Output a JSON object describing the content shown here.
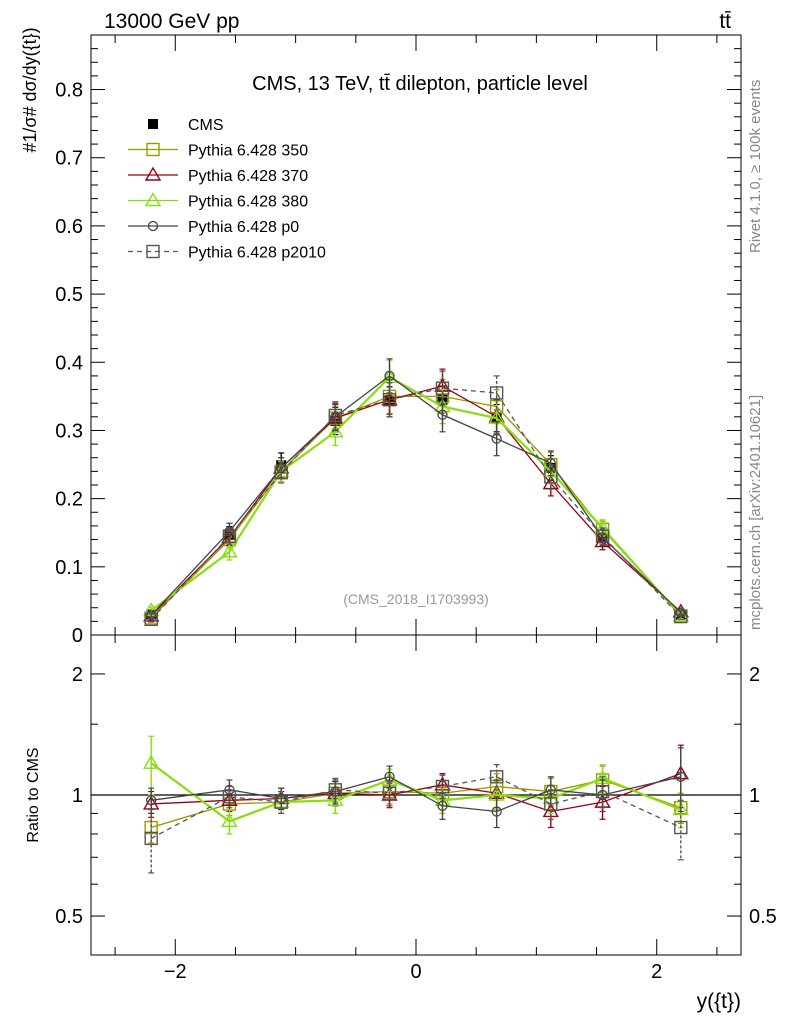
{
  "header": {
    "left_label": "13000 GeV pp",
    "right_label": "tt̄"
  },
  "side_labels": {
    "rivet": "Rivet 4.1.0, ≥ 100k events",
    "source": "mcplots.cern.ch [arXiv:2401.10621]"
  },
  "chart_data": [
    {
      "type": "line",
      "panel": "main",
      "title": "CMS, 13 TeV, tt̄ dilepton, particle level",
      "watermark": "(CMS_2018_I1703993)",
      "ylabel": "#1/σ# dσ/dy({t})",
      "xlabel": "y({t})",
      "xlim": [
        -2.7,
        2.7
      ],
      "ylim": [
        0,
        0.88
      ],
      "x_ticks": [
        -2,
        0,
        2
      ],
      "y_ticks": [
        0,
        0.1,
        0.2,
        0.3,
        0.4,
        0.5,
        0.6,
        0.7,
        0.8
      ],
      "y_tick_labels": [
        "0",
        "0.1",
        "0.2",
        "0.3",
        "0.4",
        "0.5",
        "0.6",
        "0.7",
        "0.8"
      ],
      "x": [
        -2.2,
        -1.55,
        -1.12,
        -0.67,
        -0.22,
        0.22,
        0.67,
        1.12,
        1.55,
        2.2
      ],
      "legend_position": "top-left",
      "series": [
        {
          "name": "CMS",
          "color": "#000000",
          "marker": "filled-square",
          "line": "none",
          "values": [
            0.03,
            0.147,
            0.249,
            0.314,
            0.344,
            0.345,
            0.318,
            0.245,
            0.142,
            0.03
          ],
          "errors": [
            0.004,
            0.012,
            0.018,
            0.02,
            0.02,
            0.02,
            0.02,
            0.018,
            0.012,
            0.004
          ]
        },
        {
          "name": "Pythia 6.428 350",
          "color": "#999900",
          "marker": "open-square",
          "line": "solid",
          "values": [
            0.025,
            0.14,
            0.24,
            0.318,
            0.35,
            0.35,
            0.335,
            0.25,
            0.155,
            0.028
          ],
          "errors": [
            0.004,
            0.012,
            0.015,
            0.02,
            0.025,
            0.025,
            0.025,
            0.018,
            0.012,
            0.004
          ]
        },
        {
          "name": "Pythia 6.428 370",
          "color": "#990011",
          "marker": "open-triangle",
          "line": "solid",
          "values": [
            0.028,
            0.143,
            0.245,
            0.318,
            0.345,
            0.365,
            0.32,
            0.222,
            0.137,
            0.034
          ],
          "errors": [
            0.004,
            0.012,
            0.015,
            0.02,
            0.025,
            0.025,
            0.025,
            0.018,
            0.012,
            0.004
          ]
        },
        {
          "name": "Pythia 6.428 380",
          "color": "#88dd11",
          "marker": "open-triangle",
          "line": "solid",
          "values": [
            0.036,
            0.122,
            0.24,
            0.298,
            0.378,
            0.335,
            0.318,
            0.24,
            0.157,
            0.028
          ],
          "errors": [
            0.005,
            0.012,
            0.015,
            0.02,
            0.025,
            0.025,
            0.025,
            0.018,
            0.012,
            0.004
          ]
        },
        {
          "name": "Pythia 6.428 p0",
          "color": "#444444",
          "marker": "open-circle",
          "line": "solid",
          "values": [
            0.029,
            0.152,
            0.245,
            0.32,
            0.38,
            0.323,
            0.288,
            0.252,
            0.143,
            0.033
          ],
          "errors": [
            0.004,
            0.012,
            0.015,
            0.02,
            0.025,
            0.025,
            0.025,
            0.018,
            0.012,
            0.004
          ]
        },
        {
          "name": "Pythia 6.428 p2010",
          "color": "#555555",
          "marker": "open-square",
          "line": "dashed",
          "values": [
            0.023,
            0.145,
            0.238,
            0.322,
            0.345,
            0.362,
            0.355,
            0.232,
            0.145,
            0.027
          ],
          "errors": [
            0.004,
            0.012,
            0.015,
            0.02,
            0.025,
            0.025,
            0.025,
            0.018,
            0.012,
            0.004
          ]
        }
      ]
    },
    {
      "type": "line",
      "panel": "ratio",
      "ylabel": "Ratio to CMS",
      "xlabel": "y({t})",
      "xlim": [
        -2.7,
        2.7
      ],
      "ylim": [
        0.4,
        2.5
      ],
      "y_scale": "log",
      "x_ticks": [
        -2,
        0,
        2
      ],
      "x_tick_labels": [
        "−2",
        "0",
        "2"
      ],
      "y_ticks": [
        0.5,
        1,
        2
      ],
      "y_tick_labels": [
        "0.5",
        "1",
        "2"
      ],
      "reference_line": 1,
      "x": [
        -2.2,
        -1.55,
        -1.12,
        -0.67,
        -0.22,
        0.22,
        0.67,
        1.12,
        1.55,
        2.2
      ],
      "series": [
        {
          "name": "Pythia 6.428 350",
          "color": "#999900",
          "marker": "open-square",
          "line": "solid",
          "values": [
            0.83,
            0.95,
            0.96,
            1.01,
            1.02,
            1.01,
            1.05,
            1.02,
            1.09,
            0.93
          ],
          "errors": [
            0.07,
            0.06,
            0.06,
            0.07,
            0.07,
            0.07,
            0.08,
            0.08,
            0.09,
            0.08
          ]
        },
        {
          "name": "Pythia 6.428 370",
          "color": "#990011",
          "marker": "open-triangle",
          "line": "solid",
          "values": [
            0.95,
            0.97,
            0.98,
            1.01,
            1.0,
            1.06,
            1.01,
            0.91,
            0.96,
            1.13
          ],
          "errors": [
            0.07,
            0.06,
            0.06,
            0.07,
            0.07,
            0.07,
            0.08,
            0.08,
            0.09,
            0.2
          ]
        },
        {
          "name": "Pythia 6.428 380",
          "color": "#88dd11",
          "marker": "open-triangle",
          "line": "solid",
          "values": [
            1.2,
            0.86,
            0.96,
            0.97,
            1.09,
            0.97,
            1.0,
            0.98,
            1.1,
            0.92
          ],
          "errors": [
            0.2,
            0.06,
            0.06,
            0.07,
            0.07,
            0.07,
            0.08,
            0.08,
            0.09,
            0.09
          ]
        },
        {
          "name": "Pythia 6.428 p0",
          "color": "#444444",
          "marker": "open-circle",
          "line": "solid",
          "values": [
            0.97,
            1.03,
            0.98,
            1.02,
            1.11,
            0.94,
            0.91,
            1.03,
            1.0,
            1.11
          ],
          "errors": [
            0.07,
            0.06,
            0.06,
            0.07,
            0.07,
            0.07,
            0.08,
            0.08,
            0.09,
            0.2
          ]
        },
        {
          "name": "Pythia 6.428 p2010",
          "color": "#555555",
          "marker": "open-square",
          "line": "dashed",
          "values": [
            0.78,
            0.99,
            0.96,
            1.03,
            1.01,
            1.05,
            1.11,
            0.95,
            1.02,
            0.83
          ],
          "errors": [
            0.14,
            0.06,
            0.06,
            0.07,
            0.07,
            0.07,
            0.08,
            0.08,
            0.09,
            0.14
          ]
        }
      ]
    }
  ]
}
